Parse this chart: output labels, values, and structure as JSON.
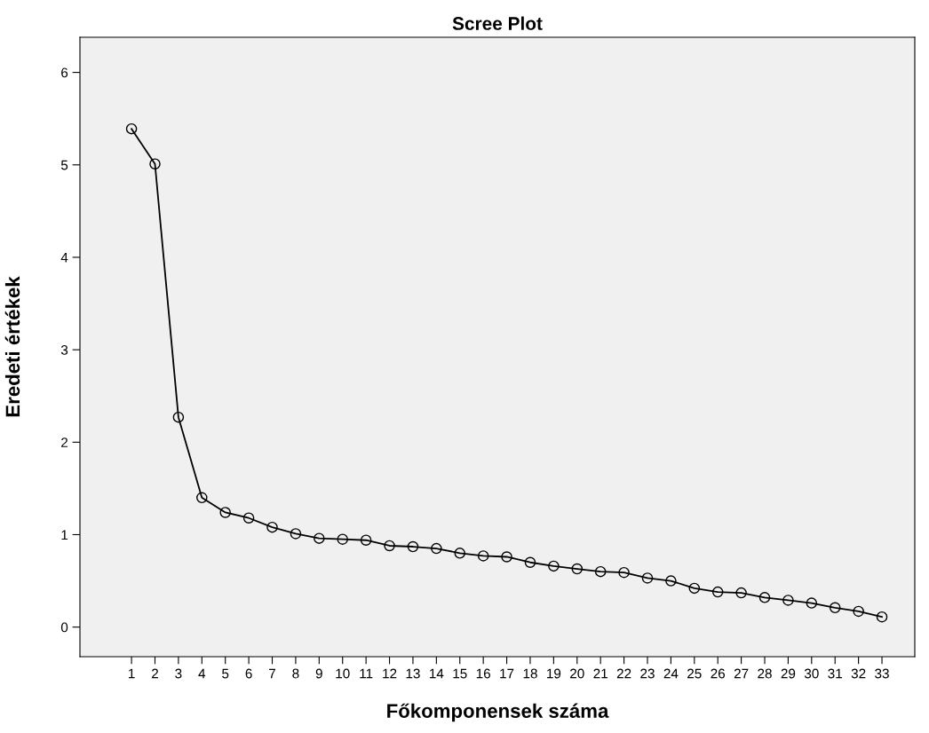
{
  "chart_data": {
    "type": "line",
    "title": "Scree Plot",
    "xlabel": "Főkomponensek száma",
    "ylabel": "Eredeti értékek",
    "categories": [
      "1",
      "2",
      "3",
      "4",
      "5",
      "6",
      "7",
      "8",
      "9",
      "10",
      "11",
      "12",
      "13",
      "14",
      "15",
      "16",
      "17",
      "18",
      "19",
      "20",
      "21",
      "22",
      "23",
      "24",
      "25",
      "26",
      "27",
      "28",
      "29",
      "30",
      "31",
      "32",
      "33"
    ],
    "series": [
      {
        "color": "#000000",
        "values": [
          5.39,
          5.01,
          2.27,
          1.4,
          1.24,
          1.18,
          1.08,
          1.01,
          0.96,
          0.95,
          0.94,
          0.88,
          0.87,
          0.85,
          0.8,
          0.77,
          0.76,
          0.7,
          0.66,
          0.63,
          0.6,
          0.59,
          0.53,
          0.5,
          0.42,
          0.38,
          0.37,
          0.32,
          0.29,
          0.26,
          0.21,
          0.17,
          0.11
        ]
      }
    ],
    "ylim": [
      -0.32,
      6.38
    ],
    "yticks": [
      0,
      1,
      2,
      3,
      4,
      5,
      6
    ],
    "marker": "circle",
    "line_style": "solid",
    "grid": false,
    "legend": false
  }
}
